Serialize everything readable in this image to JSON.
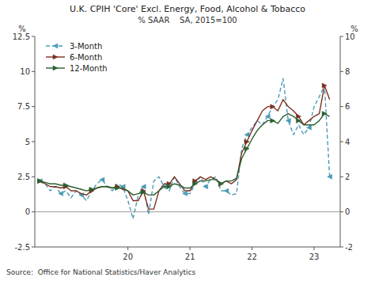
{
  "chart_data": {
    "type": "line",
    "title": "U.K. CPIH 'Core' Excl. Energy, Food, Alcohol & Tobacco",
    "subtitle": "% SAAR    SA, 2015=100",
    "ylabel": "%",
    "y2label": "%",
    "annotations": [
      "Source:  Office for National Statistics/Haver Analytics"
    ],
    "xlim": [
      18.5,
      23.42
    ],
    "xticks": [
      20,
      21,
      22,
      23
    ],
    "ylim": [
      -2.5,
      12.5
    ],
    "yticks": [
      -2.5,
      0,
      2.5,
      5,
      7.5,
      10,
      12.5
    ],
    "y2lim": [
      -2,
      10
    ],
    "y2ticks": [
      -2,
      0,
      2,
      4,
      6,
      8,
      10
    ],
    "grid": false,
    "legend": "upper left",
    "x": [
      18.583,
      18.667,
      18.75,
      18.833,
      18.917,
      19.0,
      19.083,
      19.167,
      19.25,
      19.333,
      19.417,
      19.5,
      19.583,
      19.667,
      19.75,
      19.833,
      19.917,
      20.0,
      20.083,
      20.167,
      20.25,
      20.333,
      20.417,
      20.5,
      20.583,
      20.667,
      20.75,
      20.833,
      20.917,
      21.0,
      21.083,
      21.167,
      21.25,
      21.333,
      21.417,
      21.5,
      21.583,
      21.667,
      21.75,
      21.833,
      21.917,
      22.0,
      22.083,
      22.167,
      22.25,
      22.333,
      22.417,
      22.5,
      22.583,
      22.667,
      22.75,
      22.833,
      22.917,
      23.0,
      23.083,
      23.167,
      23.25
    ],
    "series": [
      {
        "name": "3-Month",
        "color": "#4a9ab5",
        "line_style": "dashed",
        "marker": "triangle-left",
        "values": [
          2.2,
          2.0,
          1.5,
          1.8,
          1.3,
          1.5,
          1.0,
          1.5,
          1.2,
          0.8,
          1.5,
          2.0,
          2.3,
          1.8,
          1.5,
          2.0,
          1.8,
          0.8,
          -0.5,
          1.2,
          1.8,
          -0.2,
          2.2,
          2.5,
          1.8,
          1.5,
          2.5,
          1.8,
          1.3,
          1.3,
          2.0,
          2.5,
          1.8,
          2.3,
          2.5,
          1.5,
          1.5,
          1.2,
          1.3,
          4.5,
          5.5,
          6.0,
          6.5,
          6.2,
          6.8,
          7.5,
          8.0,
          9.5,
          6.5,
          5.5,
          6.2,
          5.5,
          6.0,
          7.5,
          8.2,
          9.0,
          2.5
        ]
      },
      {
        "name": "6-Month",
        "color": "#7b3020",
        "line_style": "solid",
        "marker": "triangle-right",
        "values": [
          2.2,
          2.0,
          1.8,
          1.8,
          1.7,
          1.8,
          1.5,
          1.5,
          1.3,
          1.2,
          1.5,
          1.7,
          1.8,
          1.8,
          1.7,
          1.8,
          1.6,
          1.5,
          0.8,
          0.8,
          1.5,
          0.2,
          0.2,
          1.5,
          2.0,
          2.0,
          2.5,
          2.0,
          1.5,
          1.5,
          2.2,
          2.5,
          2.3,
          2.5,
          2.3,
          2.0,
          2.2,
          2.0,
          2.3,
          4.2,
          5.0,
          5.8,
          6.5,
          7.2,
          7.5,
          7.5,
          7.2,
          8.0,
          7.5,
          7.2,
          6.8,
          6.2,
          6.5,
          6.8,
          7.0,
          9.0,
          8.0
        ]
      },
      {
        "name": "12-Month",
        "color": "#2a6030",
        "line_style": "solid",
        "marker": "triangle-right",
        "values": [
          2.2,
          2.1,
          2.0,
          2.0,
          1.9,
          1.9,
          1.8,
          1.7,
          1.6,
          1.5,
          1.6,
          1.7,
          1.8,
          1.8,
          1.7,
          1.7,
          1.7,
          1.5,
          1.2,
          1.3,
          1.4,
          1.2,
          1.2,
          1.5,
          1.8,
          1.8,
          2.0,
          1.9,
          1.7,
          1.7,
          2.0,
          2.2,
          2.2,
          2.3,
          2.3,
          2.0,
          2.2,
          2.2,
          2.4,
          3.8,
          4.5,
          5.2,
          5.8,
          6.2,
          6.5,
          6.5,
          6.3,
          6.8,
          7.0,
          6.8,
          6.5,
          6.2,
          6.2,
          6.2,
          6.5,
          7.0,
          6.8
        ]
      }
    ]
  }
}
